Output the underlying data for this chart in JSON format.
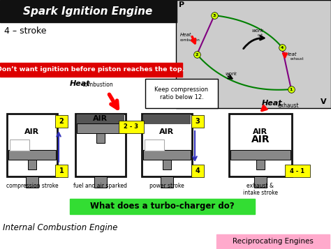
{
  "title": "Spark Ignition Engine",
  "subtitle": "4 – stroke",
  "red_banner": "Don’t want ignition before piston reaches the top.",
  "keep_compression": "Keep compression\nratio below 12.",
  "turbo_question": "What does a turbo-charger do?",
  "bottom_left": "Internal Combustion Engine",
  "bottom_right": "Reciprocating Engines",
  "stage_captions": [
    "compression stroke",
    "fuel and air sparked",
    "power stroke",
    "exhaust &\nintake stroke"
  ],
  "bg_color": "#ffffff",
  "title_bg": "#111111",
  "red_bg": "#dd0000",
  "green_bg": "#33dd33",
  "pink_bg": "#ffaacc",
  "yellow": "#ffff00",
  "pv_bg": "#cccccc",
  "cyl_border": "#111111",
  "piston_color": "#888888",
  "dark_top": "#555555"
}
